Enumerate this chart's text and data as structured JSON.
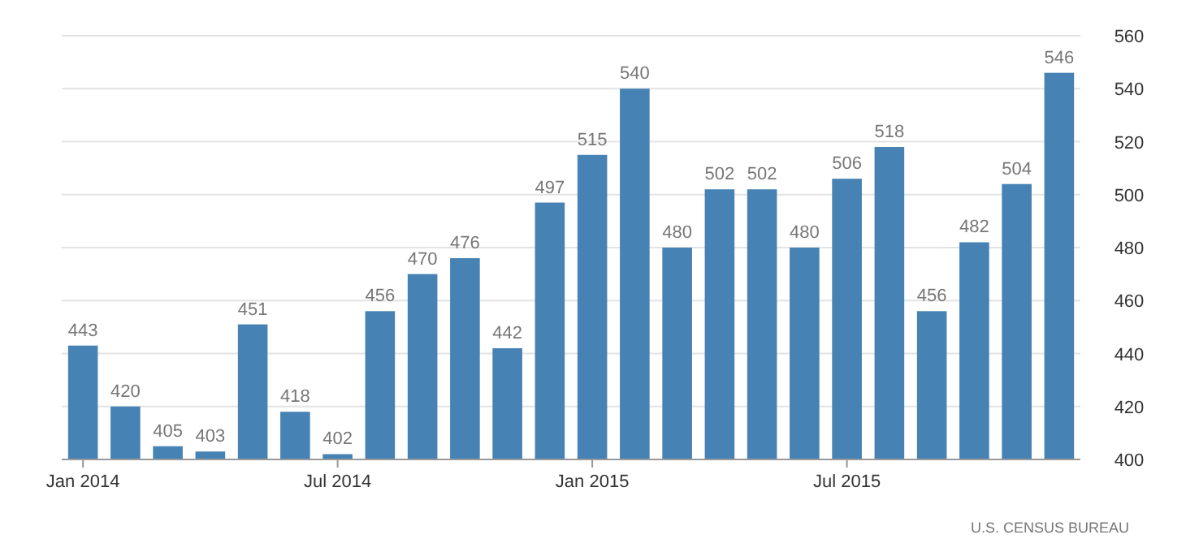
{
  "chart_data": {
    "type": "bar",
    "categories": [
      "Jan 2014",
      null,
      null,
      null,
      null,
      null,
      "Jul 2014",
      null,
      null,
      null,
      null,
      null,
      "Jan 2015",
      null,
      null,
      null,
      null,
      null,
      "Jul 2015",
      null,
      null,
      null,
      null,
      null
    ],
    "values": [
      443,
      420,
      405,
      403,
      451,
      418,
      402,
      456,
      470,
      476,
      442,
      497,
      515,
      540,
      480,
      502,
      502,
      480,
      506,
      518,
      456,
      482,
      504,
      546
    ],
    "color": "#4682b4",
    "ylim": [
      400,
      560
    ],
    "yticks": [
      400,
      420,
      440,
      460,
      480,
      500,
      520,
      540,
      560
    ],
    "grid": "y",
    "data_labels": true,
    "annotations": [
      "U.S. CENSUS BUREAU"
    ]
  }
}
